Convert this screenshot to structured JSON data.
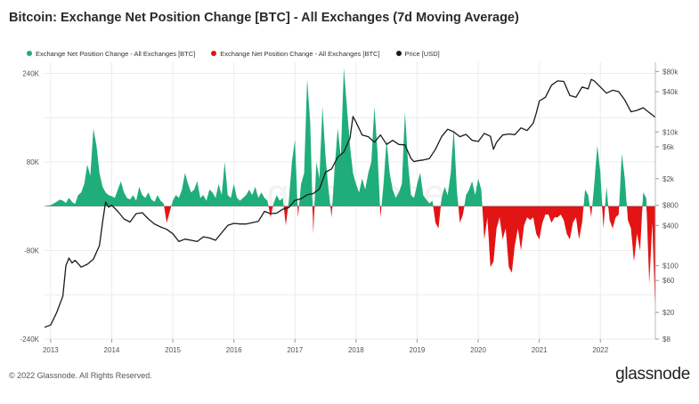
{
  "title": "Bitcoin: Exchange Net Position Change [BTC] - All Exchanges (7d Moving Average)",
  "footer": "© 2022 Glassnode. All Rights Reserved.",
  "brand": "glassnode",
  "colors": {
    "positive": "#1fae7a",
    "negative": "#e31414",
    "price": "#1b1b1b"
  },
  "chart_data": {
    "type": "area",
    "legend": [
      {
        "label": "Exchange Net Position Change - All Exchanges [BTC]",
        "color": "#1fae7a"
      },
      {
        "label": "Exchange Net Position Change - All Exchanges [BTC]",
        "color": "#e31414"
      },
      {
        "label": "Price [USD]",
        "color": "#1b1b1b"
      }
    ],
    "legend_position": "top-left",
    "grid": true,
    "x_ticks": [
      "2013",
      "2014",
      "2015",
      "2016",
      "2017",
      "2018",
      "2019",
      "2020",
      "2021",
      "2022"
    ],
    "xlim": [
      2012.9,
      2022.9
    ],
    "y_left": {
      "ticks": [
        240000,
        80000,
        -80000,
        -240000
      ],
      "tick_labels": [
        "240K",
        "80K",
        "-80K",
        "-240K"
      ],
      "lim": [
        -240000,
        260000
      ]
    },
    "y_right": {
      "scale": "log",
      "ticks": [
        8,
        20,
        60,
        100,
        400,
        800,
        2000,
        6000,
        10000,
        40000,
        80000
      ],
      "tick_labels": [
        "$8",
        "$20",
        "$60",
        "$100",
        "$400",
        "$800",
        "$2k",
        "$6k",
        "$10k",
        "$40k",
        "$80k"
      ],
      "lim": [
        8,
        110000
      ]
    },
    "series": [
      {
        "name": "Exchange Net Position Change - All Exchanges [BTC]",
        "kind": "area-signed",
        "x": [
          2012.9,
          2013.0,
          2013.1,
          2013.15,
          2013.2,
          2013.25,
          2013.3,
          2013.35,
          2013.4,
          2013.45,
          2013.5,
          2013.55,
          2013.6,
          2013.65,
          2013.7,
          2013.75,
          2013.8,
          2013.85,
          2013.9,
          2013.95,
          2014.0,
          2014.05,
          2014.1,
          2014.15,
          2014.2,
          2014.25,
          2014.3,
          2014.35,
          2014.4,
          2014.45,
          2014.5,
          2014.55,
          2014.6,
          2014.65,
          2014.7,
          2014.75,
          2014.8,
          2014.85,
          2014.9,
          2014.95,
          2015.0,
          2015.05,
          2015.1,
          2015.15,
          2015.2,
          2015.25,
          2015.3,
          2015.35,
          2015.4,
          2015.45,
          2015.5,
          2015.55,
          2015.6,
          2015.65,
          2015.7,
          2015.75,
          2015.8,
          2015.85,
          2015.9,
          2015.95,
          2016.0,
          2016.05,
          2016.1,
          2016.15,
          2016.2,
          2016.25,
          2016.3,
          2016.35,
          2016.4,
          2016.45,
          2016.5,
          2016.55,
          2016.6,
          2016.65,
          2016.7,
          2016.75,
          2016.8,
          2016.85,
          2016.9,
          2016.95,
          2017.0,
          2017.05,
          2017.1,
          2017.15,
          2017.2,
          2017.25,
          2017.3,
          2017.35,
          2017.4,
          2017.45,
          2017.5,
          2017.55,
          2017.6,
          2017.65,
          2017.7,
          2017.75,
          2017.8,
          2017.85,
          2017.9,
          2017.95,
          2018.0,
          2018.05,
          2018.1,
          2018.15,
          2018.2,
          2018.25,
          2018.3,
          2018.35,
          2018.4,
          2018.45,
          2018.5,
          2018.55,
          2018.6,
          2018.65,
          2018.7,
          2018.75,
          2018.8,
          2018.85,
          2018.9,
          2018.95,
          2019.0,
          2019.05,
          2019.1,
          2019.15,
          2019.2,
          2019.25,
          2019.3,
          2019.35,
          2019.4,
          2019.45,
          2019.5,
          2019.55,
          2019.6,
          2019.65,
          2019.7,
          2019.75,
          2019.8,
          2019.85,
          2019.9,
          2019.95,
          2020.0,
          2020.05,
          2020.1,
          2020.15,
          2020.2,
          2020.25,
          2020.3,
          2020.35,
          2020.4,
          2020.45,
          2020.5,
          2020.55,
          2020.6,
          2020.65,
          2020.7,
          2020.75,
          2020.8,
          2020.85,
          2020.9,
          2020.95,
          2021.0,
          2021.05,
          2021.1,
          2021.15,
          2021.2,
          2021.25,
          2021.3,
          2021.35,
          2021.4,
          2021.45,
          2021.5,
          2021.55,
          2021.6,
          2021.65,
          2021.7,
          2021.75,
          2021.8,
          2021.85,
          2021.9,
          2021.95,
          2022.0,
          2022.05,
          2022.1,
          2022.15,
          2022.2,
          2022.25,
          2022.3,
          2022.35,
          2022.4,
          2022.45,
          2022.5,
          2022.55,
          2022.6,
          2022.65,
          2022.7,
          2022.75,
          2022.8,
          2022.85,
          2022.9
        ],
        "values": [
          0,
          2000,
          8000,
          12000,
          10000,
          6000,
          15000,
          8000,
          4000,
          20000,
          25000,
          40000,
          75000,
          55000,
          140000,
          110000,
          60000,
          35000,
          25000,
          20000,
          18000,
          15000,
          30000,
          45000,
          25000,
          15000,
          12000,
          20000,
          10000,
          35000,
          20000,
          15000,
          25000,
          12000,
          8000,
          20000,
          10000,
          5000,
          -30000,
          -10000,
          10000,
          20000,
          15000,
          30000,
          60000,
          40000,
          25000,
          30000,
          45000,
          15000,
          20000,
          10000,
          30000,
          25000,
          15000,
          40000,
          20000,
          80000,
          20000,
          15000,
          40000,
          15000,
          10000,
          15000,
          20000,
          30000,
          20000,
          35000,
          15000,
          25000,
          15000,
          10000,
          -20000,
          5000,
          20000,
          10000,
          15000,
          -35000,
          10000,
          80000,
          120000,
          -20000,
          40000,
          60000,
          230000,
          150000,
          -50000,
          80000,
          50000,
          180000,
          90000,
          30000,
          -20000,
          70000,
          140000,
          90000,
          250000,
          180000,
          110000,
          60000,
          40000,
          25000,
          50000,
          30000,
          60000,
          80000,
          180000,
          100000,
          -20000,
          40000,
          120000,
          60000,
          30000,
          15000,
          25000,
          40000,
          170000,
          80000,
          20000,
          15000,
          40000,
          60000,
          20000,
          12000,
          5000,
          10000,
          -30000,
          -40000,
          15000,
          35000,
          20000,
          60000,
          140000,
          30000,
          -30000,
          -15000,
          20000,
          30000,
          45000,
          20000,
          50000,
          30000,
          -60000,
          -20000,
          -110000,
          -100000,
          -40000,
          -20000,
          -60000,
          -40000,
          -110000,
          -120000,
          -70000,
          -40000,
          -80000,
          -35000,
          -20000,
          -25000,
          -20000,
          -50000,
          -60000,
          -30000,
          -15000,
          -15000,
          -30000,
          -20000,
          -20000,
          -15000,
          -25000,
          -50000,
          -60000,
          -30000,
          -20000,
          -60000,
          -30000,
          30000,
          20000,
          -20000,
          40000,
          110000,
          60000,
          -40000,
          35000,
          -25000,
          -40000,
          -20000,
          -15000,
          95000,
          50000,
          -25000,
          -40000,
          -100000,
          -50000,
          -80000,
          25000,
          15000,
          -140000,
          -30000,
          -200000
        ]
      },
      {
        "name": "Price [USD]",
        "kind": "line",
        "axis": "right",
        "x": [
          2012.9,
          2013.0,
          2013.1,
          2013.2,
          2013.25,
          2013.3,
          2013.35,
          2013.4,
          2013.5,
          2013.6,
          2013.7,
          2013.8,
          2013.85,
          2013.9,
          2013.95,
          2014.0,
          2014.1,
          2014.2,
          2014.3,
          2014.4,
          2014.5,
          2014.6,
          2014.7,
          2014.8,
          2014.9,
          2015.0,
          2015.1,
          2015.2,
          2015.3,
          2015.4,
          2015.5,
          2015.6,
          2015.7,
          2015.8,
          2015.9,
          2016.0,
          2016.1,
          2016.2,
          2016.3,
          2016.4,
          2016.5,
          2016.6,
          2016.7,
          2016.8,
          2016.9,
          2017.0,
          2017.1,
          2017.2,
          2017.3,
          2017.4,
          2017.5,
          2017.6,
          2017.7,
          2017.8,
          2017.9,
          2017.95,
          2018.0,
          2018.1,
          2018.2,
          2018.3,
          2018.4,
          2018.5,
          2018.6,
          2018.7,
          2018.8,
          2018.9,
          2018.95,
          2019.0,
          2019.1,
          2019.2,
          2019.3,
          2019.4,
          2019.5,
          2019.6,
          2019.7,
          2019.8,
          2019.9,
          2020.0,
          2020.1,
          2020.2,
          2020.25,
          2020.3,
          2020.4,
          2020.5,
          2020.6,
          2020.7,
          2020.8,
          2020.9,
          2020.95,
          2021.0,
          2021.1,
          2021.2,
          2021.3,
          2021.4,
          2021.5,
          2021.6,
          2021.7,
          2021.8,
          2021.85,
          2021.9,
          2022.0,
          2022.1,
          2022.2,
          2022.3,
          2022.4,
          2022.5,
          2022.6,
          2022.7,
          2022.8,
          2022.9
        ],
        "values": [
          12,
          13,
          20,
          35,
          100,
          130,
          110,
          120,
          95,
          105,
          125,
          200,
          450,
          900,
          750,
          800,
          650,
          500,
          450,
          600,
          620,
          500,
          420,
          380,
          350,
          300,
          230,
          250,
          240,
          230,
          270,
          260,
          240,
          310,
          400,
          430,
          420,
          420,
          440,
          460,
          650,
          600,
          610,
          700,
          740,
          950,
          1000,
          1150,
          1200,
          1400,
          2500,
          2800,
          4200,
          5000,
          8000,
          17000,
          14000,
          9000,
          8500,
          7000,
          9000,
          6500,
          7500,
          6500,
          6400,
          4000,
          3600,
          3700,
          3800,
          4000,
          5500,
          8500,
          11000,
          10000,
          8500,
          9200,
          7500,
          7200,
          9500,
          8600,
          5500,
          7000,
          9000,
          9300,
          9100,
          11500,
          10500,
          13500,
          19000,
          29000,
          33000,
          50000,
          58000,
          57000,
          35000,
          33000,
          47000,
          44000,
          61000,
          58000,
          47000,
          38000,
          42000,
          40000,
          30000,
          20000,
          21000,
          23000,
          19500,
          16500
        ]
      }
    ]
  }
}
